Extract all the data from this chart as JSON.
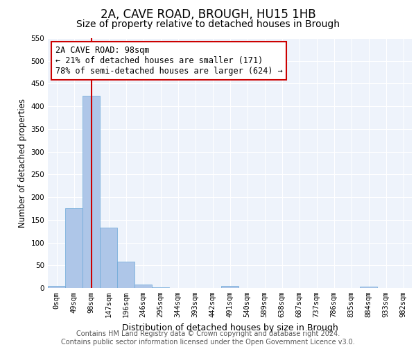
{
  "title": "2A, CAVE ROAD, BROUGH, HU15 1HB",
  "subtitle": "Size of property relative to detached houses in Brough",
  "xlabel": "Distribution of detached houses by size in Brough",
  "ylabel": "Number of detached properties",
  "bar_values": [
    5,
    175,
    423,
    133,
    58,
    8,
    2,
    0,
    0,
    0,
    5,
    0,
    0,
    0,
    0,
    0,
    0,
    0,
    3,
    0,
    0
  ],
  "bar_labels": [
    "0sqm",
    "49sqm",
    "98sqm",
    "147sqm",
    "196sqm",
    "246sqm",
    "295sqm",
    "344sqm",
    "393sqm",
    "442sqm",
    "491sqm",
    "540sqm",
    "589sqm",
    "638sqm",
    "687sqm",
    "737sqm",
    "786sqm",
    "835sqm",
    "884sqm",
    "933sqm",
    "982sqm"
  ],
  "bar_color": "#aec6e8",
  "bar_edge_color": "#6aa8d8",
  "reference_line_x": 2,
  "reference_line_color": "#cc0000",
  "annotation_text": "2A CAVE ROAD: 98sqm\n← 21% of detached houses are smaller (171)\n78% of semi-detached houses are larger (624) →",
  "annotation_box_color": "#cc0000",
  "ylim": [
    0,
    550
  ],
  "yticks": [
    0,
    50,
    100,
    150,
    200,
    250,
    300,
    350,
    400,
    450,
    500,
    550
  ],
  "background_color": "#eef3fb",
  "grid_color": "#ffffff",
  "footer_text": "Contains HM Land Registry data © Crown copyright and database right 2024.\nContains public sector information licensed under the Open Government Licence v3.0.",
  "title_fontsize": 12,
  "subtitle_fontsize": 10,
  "xlabel_fontsize": 9,
  "ylabel_fontsize": 8.5,
  "tick_fontsize": 7.5,
  "annotation_fontsize": 8.5,
  "footer_fontsize": 7
}
